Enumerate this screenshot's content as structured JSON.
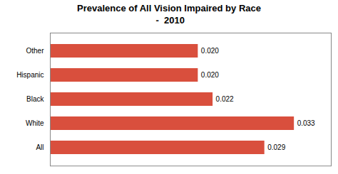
{
  "chart_data": {
    "type": "bar",
    "orientation": "horizontal",
    "title": "Prevalence of All Vision Impaired by Race\n -  2010",
    "categories": [
      "All",
      "White",
      "Black",
      "Hispanic",
      "Other"
    ],
    "values": [
      0.029,
      0.033,
      0.022,
      0.02,
      0.02
    ],
    "value_labels": [
      "0.029",
      "0.033",
      "0.022",
      "0.020",
      "0.020"
    ],
    "color": "#d94f3d",
    "xlim": [
      0,
      0.038
    ],
    "data_labels": true,
    "tick_labels": "y",
    "grid": false
  }
}
